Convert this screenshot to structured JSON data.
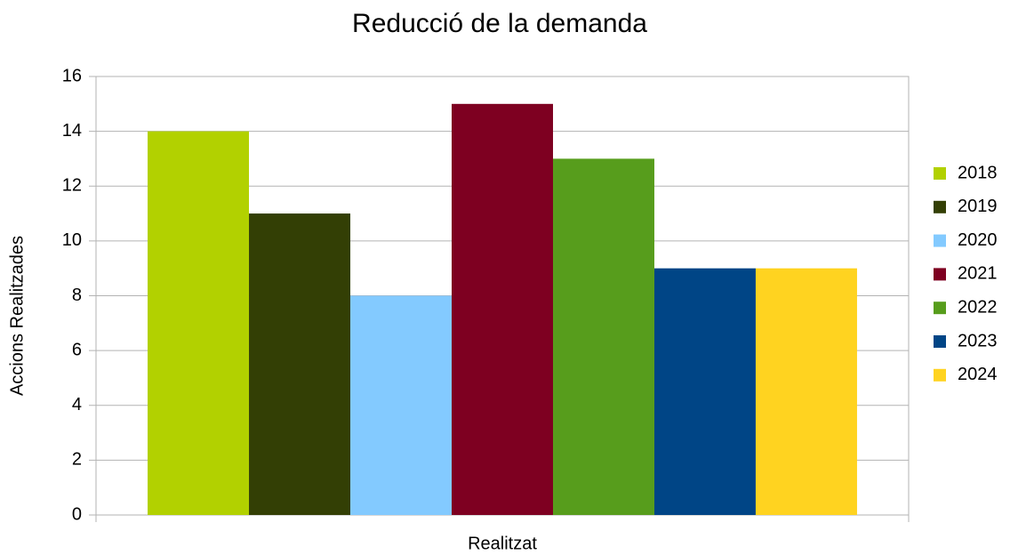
{
  "chart_data": {
    "type": "bar",
    "title": "Reducció de la demanda",
    "x_label": "Realitzat",
    "y_label": "Accions Realitzades",
    "categories": [
      "Realitzat"
    ],
    "series": [
      {
        "name": "2018",
        "color": "#b2d100",
        "values": [
          14
        ]
      },
      {
        "name": "2019",
        "color": "#333f05",
        "values": [
          11
        ]
      },
      {
        "name": "2020",
        "color": "#83caff",
        "values": [
          8
        ]
      },
      {
        "name": "2021",
        "color": "#7e0021",
        "values": [
          15
        ]
      },
      {
        "name": "2022",
        "color": "#579d1c",
        "values": [
          13
        ]
      },
      {
        "name": "2023",
        "color": "#004586",
        "values": [
          9
        ]
      },
      {
        "name": "2024",
        "color": "#ffd320",
        "values": [
          9
        ]
      }
    ],
    "ylim": [
      0,
      16
    ],
    "yticks": [
      0,
      2,
      4,
      6,
      8,
      10,
      12,
      14,
      16
    ],
    "grid": true,
    "legend": "right"
  }
}
